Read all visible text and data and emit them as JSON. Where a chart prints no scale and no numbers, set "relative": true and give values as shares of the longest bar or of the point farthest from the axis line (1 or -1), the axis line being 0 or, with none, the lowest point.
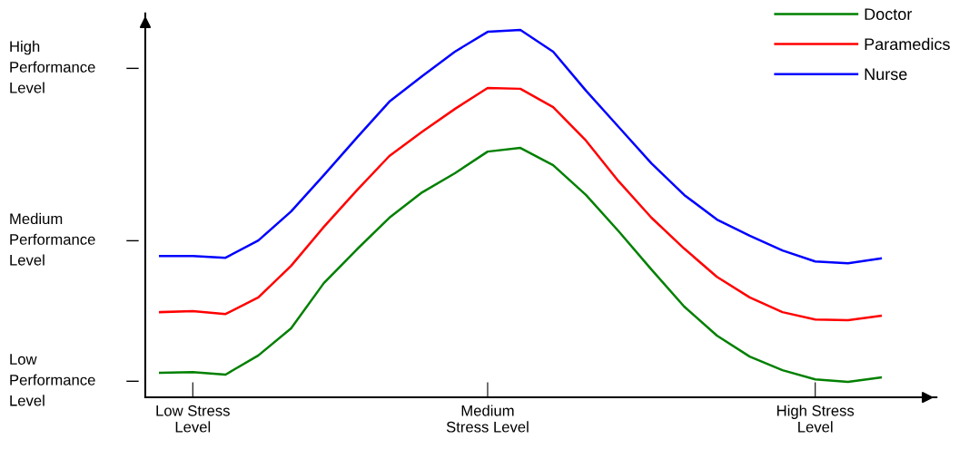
{
  "chart_data": {
    "type": "line",
    "relative": true,
    "categories": [
      null,
      "Low Stress\nLevel",
      null,
      null,
      null,
      null,
      null,
      null,
      null,
      null,
      "Medium\nStress Level",
      null,
      null,
      null,
      null,
      null,
      null,
      null,
      null,
      null,
      "High Stress\nLevel",
      null,
      null
    ],
    "annotations": [
      "Low\nPerformance\nLevel",
      "Medium\nPerformance\nLevel",
      "High\nPerformance\nLevel"
    ],
    "series": [
      {
        "name": "Doctor",
        "color": "#008000",
        "values": [
          0.067,
          0.069,
          0.062,
          0.114,
          0.188,
          0.311,
          0.402,
          0.489,
          0.558,
          0.61,
          0.669,
          0.679,
          0.632,
          0.551,
          0.452,
          0.348,
          0.247,
          0.168,
          0.111,
          0.074,
          0.049,
          0.042,
          0.054
        ]
      },
      {
        "name": "Paramedics",
        "color": "#ff0000",
        "values": [
          0.232,
          0.235,
          0.227,
          0.272,
          0.358,
          0.464,
          0.563,
          0.657,
          0.723,
          0.785,
          0.842,
          0.84,
          0.79,
          0.699,
          0.588,
          0.489,
          0.405,
          0.328,
          0.272,
          0.232,
          0.212,
          0.21,
          0.222
        ]
      },
      {
        "name": "Nurse",
        "color": "#0000ff",
        "values": [
          0.385,
          0.385,
          0.38,
          0.427,
          0.506,
          0.605,
          0.706,
          0.805,
          0.874,
          0.941,
          0.995,
          1.0,
          0.941,
          0.835,
          0.736,
          0.637,
          0.551,
          0.484,
          0.44,
          0.4,
          0.37,
          0.365,
          0.378
        ]
      }
    ],
    "legend": "top right",
    "grid": false,
    "marker": "none",
    "line_style": "solid"
  }
}
